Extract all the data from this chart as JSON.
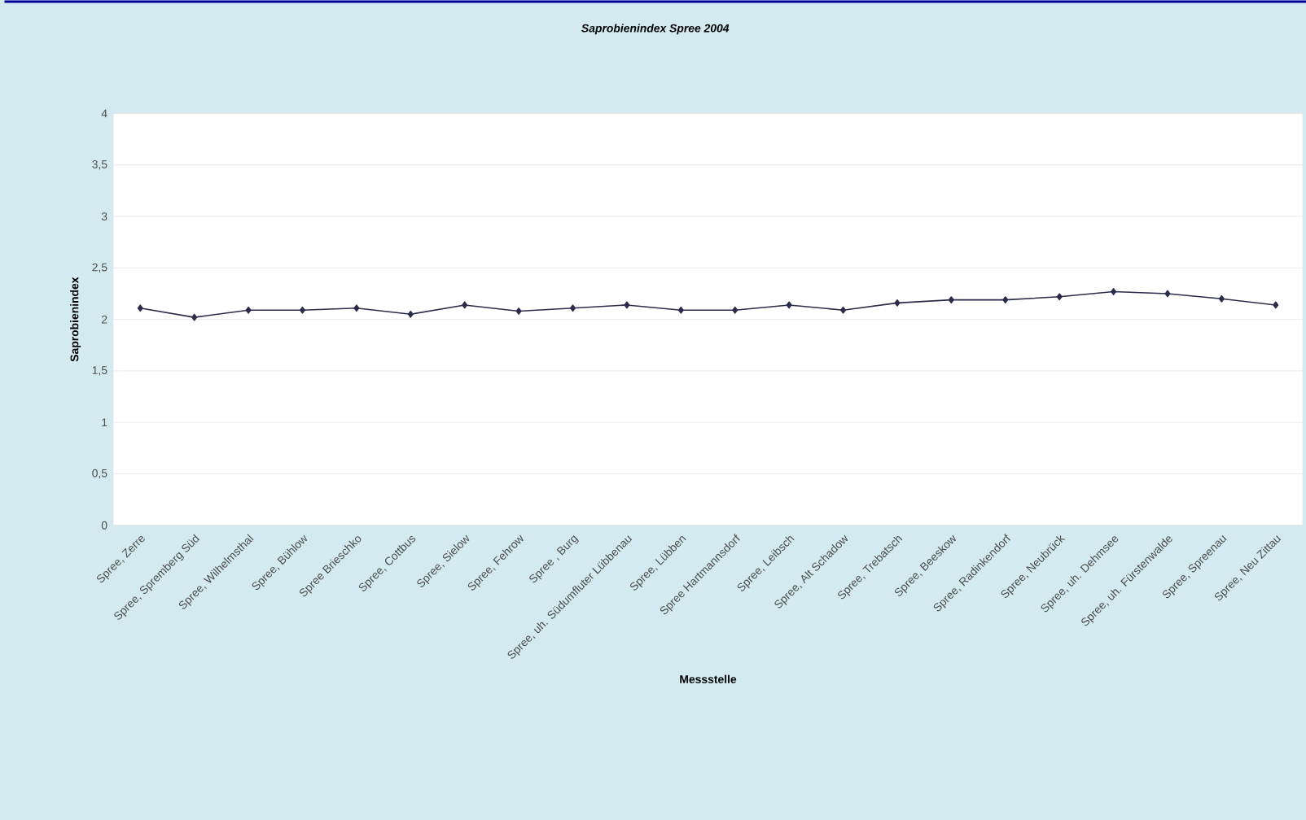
{
  "chart_data": {
    "type": "line",
    "title": "Saprobienindex Spree 2004",
    "xlabel": "Messstelle",
    "ylabel": "Saprobienindex",
    "categories": [
      "Spree, Zerre",
      "Spree, Spremberg Süd",
      "Spree, Wilhelmsthal",
      "Spree, Bühlow",
      "Spree Brieschko",
      "Spree, Cottbus",
      "Spree, Sielow",
      "Spree, Fehrow",
      "Spree , Burg",
      "Spree, uh. Südumfluter Lübbenau",
      "Spree, Lübben",
      "Spree Hartmannsdorf",
      "Spree, Leibsch",
      "Spree, Alt Schadow",
      "Spree, Trebatsch",
      "Spree, Beeskow",
      "Spree, Radinkendorf",
      "Spree, Neubrück",
      "Spree, uh. Dehmsee",
      "Spree, uh. Fürstenwalde",
      "Spree, Spreenau",
      "Spree, Neu Zittau"
    ],
    "series": [
      {
        "color": "#2b2b4a",
        "values": [
          2.11,
          2.02,
          2.09,
          2.09,
          2.11,
          2.05,
          2.14,
          2.08,
          2.11,
          2.14,
          2.09,
          2.09,
          2.14,
          2.09,
          2.16,
          2.19,
          2.19,
          2.22,
          2.27,
          2.25,
          2.2,
          2.14
        ]
      }
    ],
    "ylim": [
      0,
      4
    ],
    "yticks": [
      {
        "value": 0,
        "label": "0"
      },
      {
        "value": 0.5,
        "label": "0,5"
      },
      {
        "value": 1,
        "label": "1"
      },
      {
        "value": 1.5,
        "label": "1,5"
      },
      {
        "value": 2,
        "label": "2"
      },
      {
        "value": 2.5,
        "label": "2,5"
      },
      {
        "value": 3,
        "label": "3"
      },
      {
        "value": 3.5,
        "label": "3,5"
      },
      {
        "value": 4,
        "label": "4"
      }
    ],
    "grid": "y",
    "marker": "diamond",
    "line_style": "solid"
  }
}
